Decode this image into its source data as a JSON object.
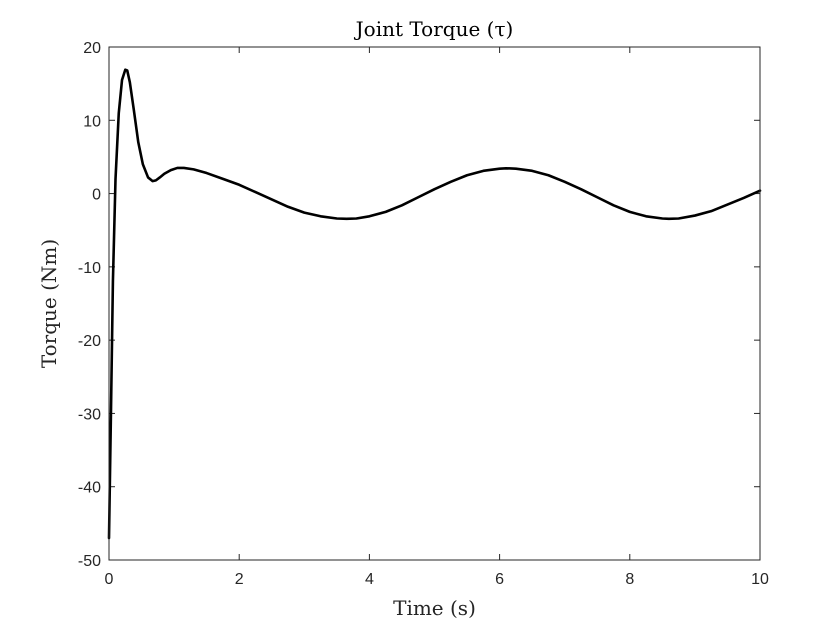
{
  "chart_data": {
    "type": "line",
    "title": "Joint Torque (τ)",
    "xlabel": "Time (s)",
    "ylabel": "Torque (Nm)",
    "xlim": [
      0,
      10
    ],
    "ylim": [
      -50,
      20
    ],
    "xticks": [
      0,
      2,
      4,
      6,
      8,
      10
    ],
    "yticks": [
      20,
      10,
      0,
      -10,
      -20,
      -30,
      -40,
      -50
    ],
    "xtick_labels": [
      "0",
      "2",
      "4",
      "6",
      "8",
      "10"
    ],
    "ytick_labels": [
      "20",
      "10",
      "0",
      "-10",
      "-20",
      "-30",
      "-40",
      "-50"
    ],
    "grid": true,
    "legend": "none",
    "series": [
      {
        "color": "#000000",
        "x": [
          0,
          0.03,
          0.06,
          0.1,
          0.15,
          0.2,
          0.25,
          0.28,
          0.32,
          0.38,
          0.45,
          0.52,
          0.6,
          0.67,
          0.72,
          0.78,
          0.85,
          0.95,
          1.05,
          1.15,
          1.3,
          1.5,
          1.75,
          2.0,
          2.25,
          2.5,
          2.75,
          3.0,
          3.25,
          3.5,
          3.65,
          3.8,
          4.0,
          4.25,
          4.5,
          4.75,
          5.0,
          5.25,
          5.5,
          5.75,
          6.0,
          6.1,
          6.25,
          6.5,
          6.75,
          7.0,
          7.25,
          7.5,
          7.75,
          8.0,
          8.25,
          8.5,
          8.6,
          8.75,
          9.0,
          9.25,
          9.5,
          9.75,
          10.0
        ],
        "y": [
          -47,
          -30,
          -12,
          2,
          11,
          15.5,
          16.9,
          16.8,
          15.2,
          11.5,
          7,
          4,
          2.2,
          1.7,
          1.8,
          2.2,
          2.7,
          3.2,
          3.5,
          3.5,
          3.3,
          2.8,
          2.0,
          1.2,
          0.2,
          -0.8,
          -1.8,
          -2.6,
          -3.1,
          -3.4,
          -3.45,
          -3.4,
          -3.1,
          -2.5,
          -1.6,
          -0.5,
          0.6,
          1.6,
          2.5,
          3.1,
          3.4,
          3.45,
          3.4,
          3.1,
          2.5,
          1.6,
          0.6,
          -0.5,
          -1.6,
          -2.5,
          -3.1,
          -3.4,
          -3.45,
          -3.4,
          -3.0,
          -2.4,
          -1.5,
          -0.6,
          0.4
        ]
      }
    ]
  }
}
